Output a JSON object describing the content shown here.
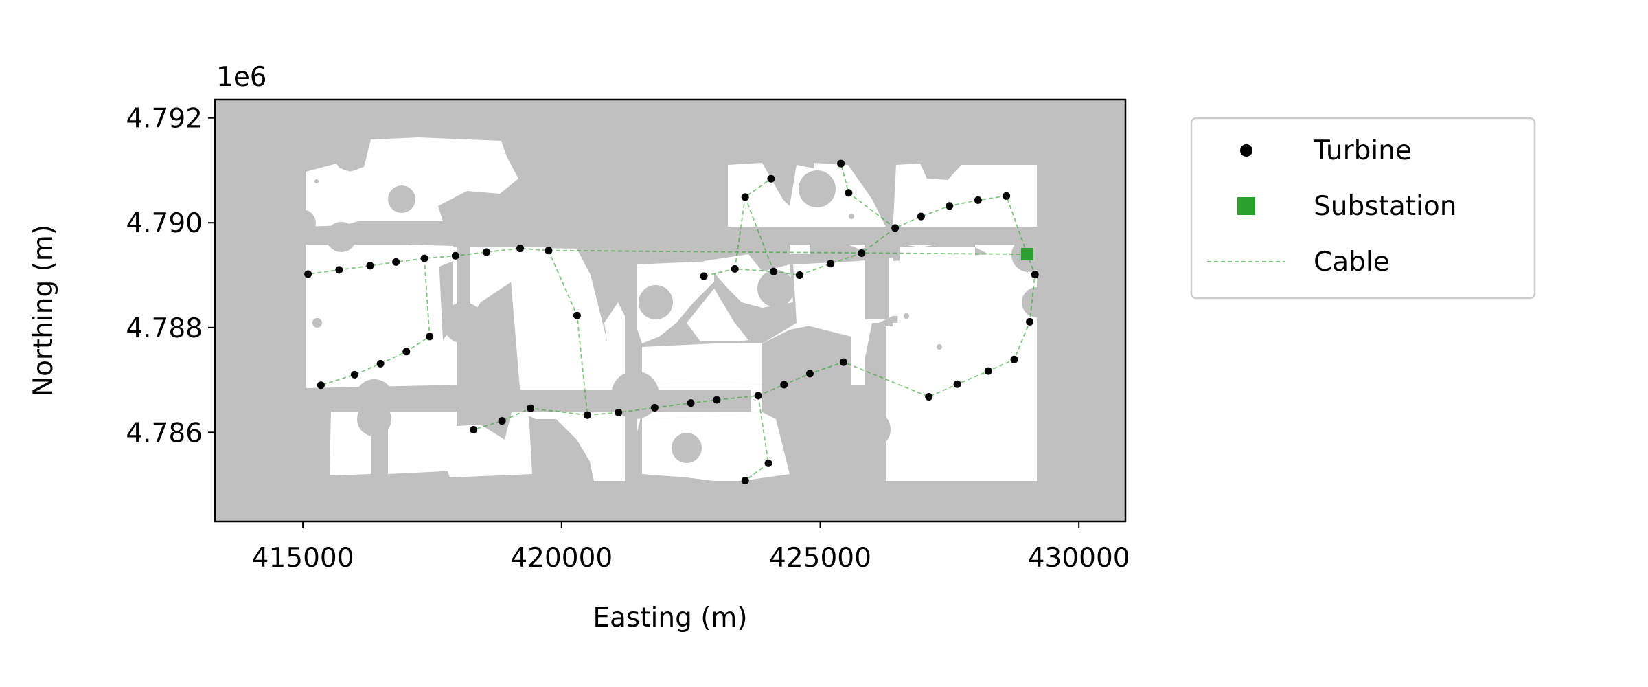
{
  "chart_data": {
    "type": "scatter",
    "title": "",
    "xlabel": "Easting (m)",
    "ylabel": "Northing (m)",
    "y_offset_label": "1e6",
    "xlim": [
      413300,
      430900
    ],
    "ylim": [
      4784300,
      4792350
    ],
    "xticks": [
      415000,
      420000,
      425000,
      430000
    ],
    "xtick_labels": [
      "415000",
      "420000",
      "425000",
      "430000"
    ],
    "yticks": [
      4786000,
      4788000,
      4790000,
      4792000
    ],
    "ytick_labels": [
      "4.786",
      "4.788",
      "4.790",
      "4.792"
    ],
    "grid": false,
    "legend_position": "outside-right",
    "colors": {
      "background_exclusion": "#c0c0c0",
      "buildable": "#ffffff",
      "turbine": "#000000",
      "substation": "#2ca02c",
      "cable": "#2ca02c"
    },
    "series": [
      {
        "name": "Turbine",
        "marker": "circle",
        "points": [
          [
            415100,
            4789020
          ],
          [
            415700,
            4789100
          ],
          [
            416300,
            4789180
          ],
          [
            416800,
            4789250
          ],
          [
            417350,
            4789320
          ],
          [
            417950,
            4789370
          ],
          [
            418550,
            4789440
          ],
          [
            419200,
            4789510
          ],
          [
            419750,
            4789470
          ],
          [
            415350,
            4786900
          ],
          [
            416000,
            4787100
          ],
          [
            416500,
            4787310
          ],
          [
            417000,
            4787540
          ],
          [
            417450,
            4787830
          ],
          [
            420300,
            4788230
          ],
          [
            418300,
            4786050
          ],
          [
            418850,
            4786220
          ],
          [
            419400,
            4786460
          ],
          [
            420500,
            4786330
          ],
          [
            421100,
            4786380
          ],
          [
            421800,
            4786470
          ],
          [
            422500,
            4786560
          ],
          [
            423000,
            4786620
          ],
          [
            423800,
            4786700
          ],
          [
            424300,
            4786910
          ],
          [
            424800,
            4787120
          ],
          [
            425450,
            4787340
          ],
          [
            423550,
            4785080
          ],
          [
            424000,
            4785410
          ],
          [
            427100,
            4786680
          ],
          [
            427650,
            4786920
          ],
          [
            428250,
            4787170
          ],
          [
            428750,
            4787390
          ],
          [
            429050,
            4788110
          ],
          [
            429150,
            4789010
          ],
          [
            422750,
            4788980
          ],
          [
            423350,
            4789120
          ],
          [
            424100,
            4789070
          ],
          [
            424600,
            4789000
          ],
          [
            425200,
            4789220
          ],
          [
            425800,
            4789420
          ],
          [
            426450,
            4789900
          ],
          [
            426950,
            4790120
          ],
          [
            427500,
            4790320
          ],
          [
            428050,
            4790430
          ],
          [
            428600,
            4790510
          ],
          [
            425550,
            4790570
          ],
          [
            425400,
            4791130
          ],
          [
            423550,
            4790490
          ],
          [
            424050,
            4790840
          ]
        ]
      },
      {
        "name": "Substation",
        "marker": "square",
        "points": [
          [
            429000,
            4789400
          ]
        ]
      },
      {
        "name": "Cable",
        "style": "dashed-line",
        "segments": [
          [
            [
              429000,
              4789400
            ],
            [
              428600,
              4790510
            ],
            [
              428050,
              4790430
            ],
            [
              427500,
              4790320
            ],
            [
              426950,
              4790120
            ],
            [
              426450,
              4789900
            ],
            [
              425800,
              4789420
            ],
            [
              425200,
              4789220
            ],
            [
              424600,
              4789000
            ],
            [
              424100,
              4789070
            ],
            [
              423350,
              4789120
            ],
            [
              422750,
              4788980
            ]
          ],
          [
            [
              426450,
              4789900
            ],
            [
              425550,
              4790570
            ],
            [
              425400,
              4791130
            ]
          ],
          [
            [
              424100,
              4789070
            ],
            [
              423550,
              4790490
            ],
            [
              424050,
              4790840
            ]
          ],
          [
            [
              423550,
              4790490
            ],
            [
              423350,
              4789120
            ]
          ],
          [
            [
              429000,
              4789400
            ],
            [
              419750,
              4789470
            ],
            [
              419200,
              4789510
            ],
            [
              418550,
              4789440
            ],
            [
              417950,
              4789370
            ],
            [
              417350,
              4789320
            ],
            [
              416800,
              4789250
            ],
            [
              416300,
              4789180
            ],
            [
              415700,
              4789100
            ],
            [
              415100,
              4789020
            ]
          ],
          [
            [
              417350,
              4789320
            ],
            [
              417450,
              4787830
            ],
            [
              417000,
              4787540
            ],
            [
              416500,
              4787310
            ],
            [
              416000,
              4787100
            ],
            [
              415350,
              4786900
            ]
          ],
          [
            [
              419750,
              4789470
            ],
            [
              420300,
              4788230
            ],
            [
              420500,
              4786330
            ],
            [
              419400,
              4786460
            ],
            [
              418850,
              4786220
            ],
            [
              418300,
              4786050
            ]
          ],
          [
            [
              420500,
              4786330
            ],
            [
              421100,
              4786380
            ],
            [
              421800,
              4786470
            ],
            [
              422500,
              4786560
            ],
            [
              423000,
              4786620
            ],
            [
              423800,
              4786700
            ],
            [
              424300,
              4786910
            ],
            [
              424800,
              4787120
            ],
            [
              425450,
              4787340
            ],
            [
              427100,
              4786680
            ],
            [
              427650,
              4786920
            ],
            [
              428250,
              4787170
            ],
            [
              428750,
              4787390
            ],
            [
              429050,
              4788110
            ],
            [
              429150,
              4789010
            ],
            [
              429000,
              4789400
            ]
          ],
          [
            [
              423800,
              4786700
            ],
            [
              424000,
              4785410
            ],
            [
              423550,
              4785080
            ]
          ]
        ]
      }
    ]
  }
}
